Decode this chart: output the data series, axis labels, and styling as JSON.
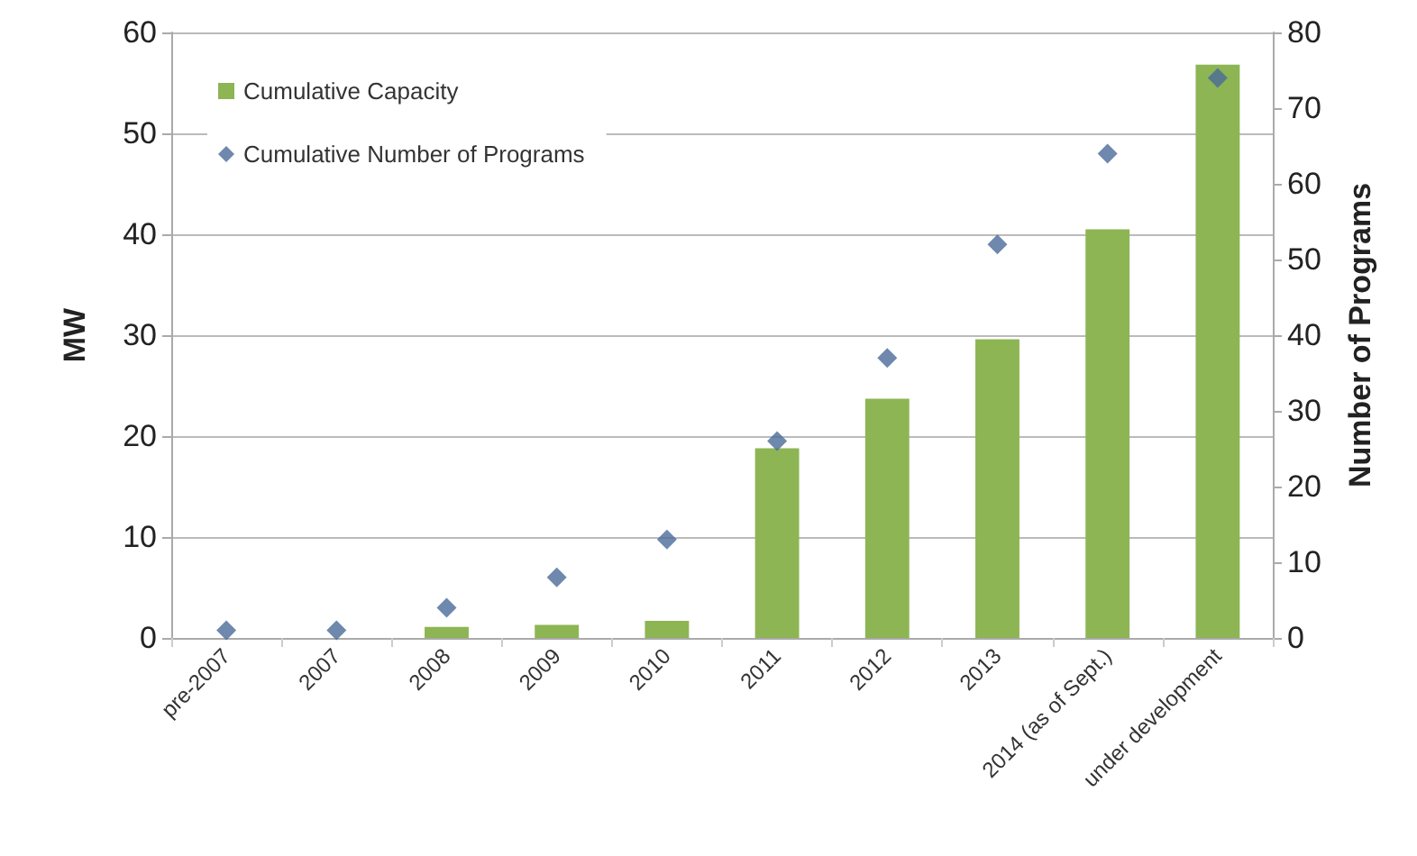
{
  "chart_data": {
    "type": "bar",
    "categories": [
      "pre-2007",
      "2007",
      "2008",
      "2009",
      "2010",
      "2011",
      "2012",
      "2013",
      "2014 (as of Sept.)",
      "under development"
    ],
    "series": [
      {
        "name": "Cumulative Capacity",
        "color": "#8db554",
        "values": [
          null,
          null,
          1.1,
          1.3,
          1.7,
          18.8,
          23.7,
          29.6,
          40.5,
          56.8
        ]
      },
      {
        "name": "Cumulative Number of Programs",
        "type": "scatter",
        "axis": "y2",
        "color": "#4a6a9a",
        "marker": "diamond",
        "values": [
          1,
          1,
          4,
          8,
          13,
          26,
          37,
          52,
          64,
          74
        ]
      }
    ],
    "ylabel": "MW",
    "y2label": "Number of Programs",
    "ylim": [
      0,
      60
    ],
    "yticks": [
      0,
      10,
      20,
      30,
      40,
      50,
      60
    ],
    "y2lim": [
      0,
      80
    ],
    "y2ticks": [
      0,
      10,
      20,
      30,
      40,
      50,
      60,
      70,
      80
    ],
    "grid": "y",
    "legend": "top left"
  }
}
